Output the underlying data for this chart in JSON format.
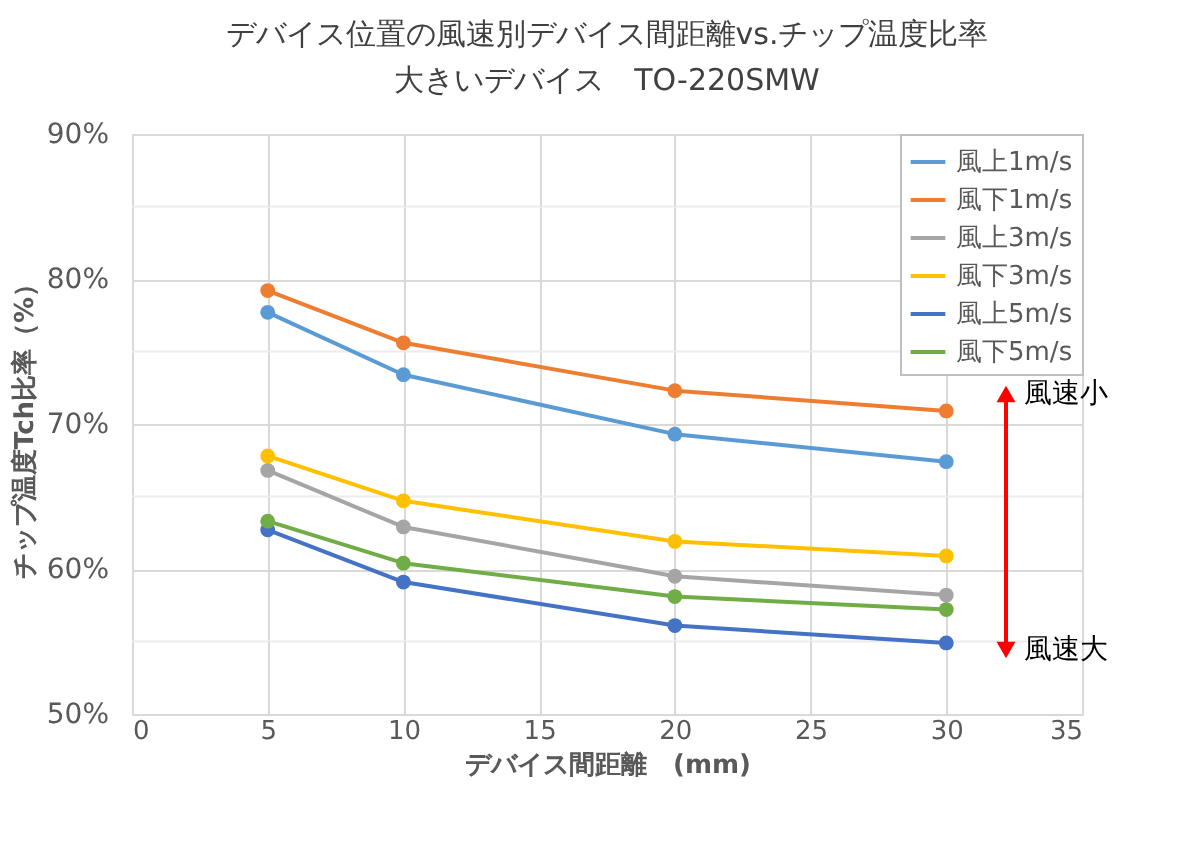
{
  "chart_data": {
    "type": "line",
    "title": "デバイス位置の風速別デバイス間距離vs.チップ温度比率",
    "subtitle": "大きいデバイス　TO-220SMW",
    "xlabel": "デバイス間距離　(mm)",
    "ylabel": "チップ温度Tch比率（%）",
    "x": [
      5,
      10,
      20,
      30
    ],
    "series": [
      {
        "name": "風上1m/s",
        "color": "#5b9bd5",
        "values": [
          77.7,
          73.4,
          69.3,
          67.4
        ]
      },
      {
        "name": "風下1m/s",
        "color": "#ed7d31",
        "values": [
          79.2,
          75.6,
          72.3,
          70.9
        ]
      },
      {
        "name": "風上3m/s",
        "color": "#a5a5a5",
        "values": [
          66.8,
          62.9,
          59.5,
          58.2
        ]
      },
      {
        "name": "風下3m/s",
        "color": "#ffc000",
        "values": [
          67.8,
          64.7,
          61.9,
          60.9
        ]
      },
      {
        "name": "風上5m/s",
        "color": "#4472c4",
        "values": [
          62.7,
          59.1,
          56.1,
          54.9
        ]
      },
      {
        "name": "風下5m/s",
        "color": "#70ad47",
        "values": [
          63.3,
          60.4,
          58.1,
          57.2
        ]
      }
    ],
    "xlim": [
      0,
      35
    ],
    "xticks": [
      0,
      5,
      10,
      15,
      20,
      25,
      30,
      35
    ],
    "ylim": [
      50,
      90
    ],
    "yticks": [
      {
        "value": 50,
        "label": "50%"
      },
      {
        "value": 55,
        "label": null
      },
      {
        "value": 60,
        "label": "60%"
      },
      {
        "value": 65,
        "label": null
      },
      {
        "value": 70,
        "label": "70%"
      },
      {
        "value": 75,
        "label": null
      },
      {
        "value": 80,
        "label": "80%"
      },
      {
        "value": 85,
        "label": null
      },
      {
        "value": 90,
        "label": "90%"
      }
    ],
    "annotations": [
      "風速小",
      "風速大"
    ],
    "grid": true,
    "legend": "top right",
    "marker": "circle",
    "line_style": "solid"
  }
}
